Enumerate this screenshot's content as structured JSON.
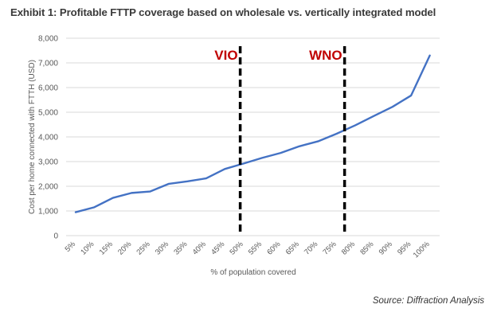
{
  "title": "Exhibit 1: Profitable FTTP coverage based on wholesale vs. vertically integrated model",
  "source": "Source: Diffraction Analysis",
  "chart_data": {
    "type": "line",
    "title": "Exhibit 1: Profitable FTTP coverage based on wholesale vs. vertically integrated model",
    "xlabel": "% of population covered",
    "ylabel": "Cost per home connected with FTTH (USD)",
    "categories": [
      "5%",
      "10%",
      "15%",
      "20%",
      "25%",
      "30%",
      "35%",
      "40%",
      "45%",
      "50%",
      "55%",
      "60%",
      "65%",
      "70%",
      "75%",
      "80%",
      "85%",
      "90%",
      "95%",
      "100%"
    ],
    "series": [
      {
        "name": "Cost per home connected",
        "color": "#4472c4",
        "values": [
          950,
          1150,
          1530,
          1730,
          1790,
          2100,
          2200,
          2320,
          2700,
          2920,
          3150,
          3350,
          3620,
          3820,
          4130,
          4470,
          4850,
          5220,
          5680,
          7300
        ]
      }
    ],
    "ylim": [
      0,
      8000
    ],
    "yticks": [
      0,
      1000,
      2000,
      3000,
      4000,
      5000,
      6000,
      7000,
      8000
    ],
    "ytick_labels": [
      "0",
      "1,000",
      "2,000",
      "3,000",
      "4,000",
      "5,000",
      "6,000",
      "7,000",
      "8,000"
    ],
    "grid": true,
    "legend": "none",
    "annotations": [
      {
        "label": "VIO",
        "x_category_index": 9.0,
        "x_value": "50%",
        "style": "dashed-vertical",
        "label_color": "#c00000"
      },
      {
        "label": "WNO",
        "x_category_index": 14.6,
        "x_value": "~78%",
        "style": "dashed-vertical",
        "label_color": "#c00000"
      }
    ]
  }
}
